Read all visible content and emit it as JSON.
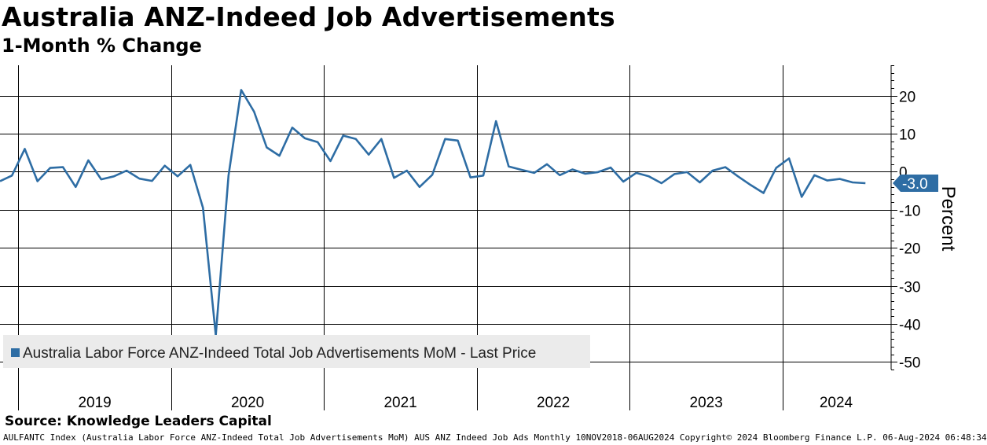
{
  "header": {
    "title": "Australia ANZ-Indeed Job Advertisements",
    "subtitle": "1-Month % Change"
  },
  "source": "Source: Knowledge Leaders Capital",
  "footer": "AULFANTC Index (Australia Labor Force ANZ-Indeed Total Job Advertisements MoM) AUS ANZ Indeed Job Ads  Monthly 10NOV2018-06AUG2024 Copyright© 2024 Bloomberg Finance L.P. 06-Aug-2024 06:48:34",
  "colors": {
    "series": "#2e6da4",
    "grid": "#000000",
    "legend_bg": "#ebebeb"
  },
  "chart_data": {
    "type": "line",
    "title": "Australia ANZ-Indeed Job Advertisements",
    "subtitle": "1-Month % Change",
    "ylabel": "Percent",
    "xlabel": "",
    "ylim": [
      -52,
      28
    ],
    "yticks": [
      20,
      10,
      0,
      -10,
      -20,
      -30,
      -40,
      -50
    ],
    "ytick_labels": [
      "20",
      "10",
      "0",
      "-10",
      "-20",
      "-30",
      "-40",
      "-50"
    ],
    "xlim": [
      2018.88,
      2024.71
    ],
    "year_boundaries": [
      2019,
      2020,
      2021,
      2022,
      2023,
      2024
    ],
    "year_labels": [
      "2019",
      "2020",
      "2021",
      "2022",
      "2023",
      "2024"
    ],
    "year_label_positions": [
      2019.5,
      2020.5,
      2021.5,
      2022.5,
      2023.5,
      2024.35
    ],
    "grid": true,
    "legend_placement": "bottom-left",
    "last_value": -3.0,
    "last_value_label": "-3.0",
    "series": [
      {
        "name": "Australia Labor Force ANZ-Indeed Total Job Advertisements MoM - Last Price",
        "x": [
          2018.88,
          2018.958,
          2019.042,
          2019.125,
          2019.208,
          2019.292,
          2019.375,
          2019.458,
          2019.542,
          2019.625,
          2019.708,
          2019.792,
          2019.875,
          2019.958,
          2020.042,
          2020.125,
          2020.208,
          2020.292,
          2020.375,
          2020.458,
          2020.542,
          2020.625,
          2020.708,
          2020.792,
          2020.875,
          2020.958,
          2021.042,
          2021.125,
          2021.208,
          2021.292,
          2021.375,
          2021.458,
          2021.542,
          2021.625,
          2021.708,
          2021.792,
          2021.875,
          2021.958,
          2022.042,
          2022.125,
          2022.208,
          2022.292,
          2022.375,
          2022.458,
          2022.542,
          2022.625,
          2022.708,
          2022.792,
          2022.875,
          2022.958,
          2023.042,
          2023.125,
          2023.208,
          2023.292,
          2023.375,
          2023.458,
          2023.542,
          2023.625,
          2023.708,
          2023.792,
          2023.875,
          2023.958,
          2024.042,
          2024.125,
          2024.208,
          2024.292,
          2024.375,
          2024.458,
          2024.542
        ],
        "values": [
          -2.5,
          -1.0,
          6.0,
          -2.5,
          1.0,
          1.2,
          -4.0,
          3.0,
          -2.0,
          -1.2,
          0.3,
          -1.8,
          -2.4,
          1.6,
          -1.2,
          1.8,
          -9.5,
          -43.0,
          -1.0,
          21.5,
          15.8,
          6.4,
          4.2,
          11.6,
          8.8,
          7.8,
          2.8,
          9.5,
          8.6,
          4.5,
          8.6,
          -1.6,
          0.3,
          -4.0,
          -0.8,
          8.6,
          8.2,
          -1.5,
          -1.0,
          13.3,
          1.4,
          0.5,
          -0.3,
          2.0,
          -0.9,
          0.6,
          -0.5,
          -0.1,
          1.1,
          -2.6,
          -0.3,
          -1.2,
          -3.0,
          -0.6,
          -0.1,
          -2.8,
          0.3,
          1.2,
          -1.2,
          -3.5,
          -5.6,
          1.0,
          3.5,
          -6.6,
          -0.9,
          -2.3,
          -1.9,
          -2.8,
          -3.0
        ]
      }
    ]
  }
}
